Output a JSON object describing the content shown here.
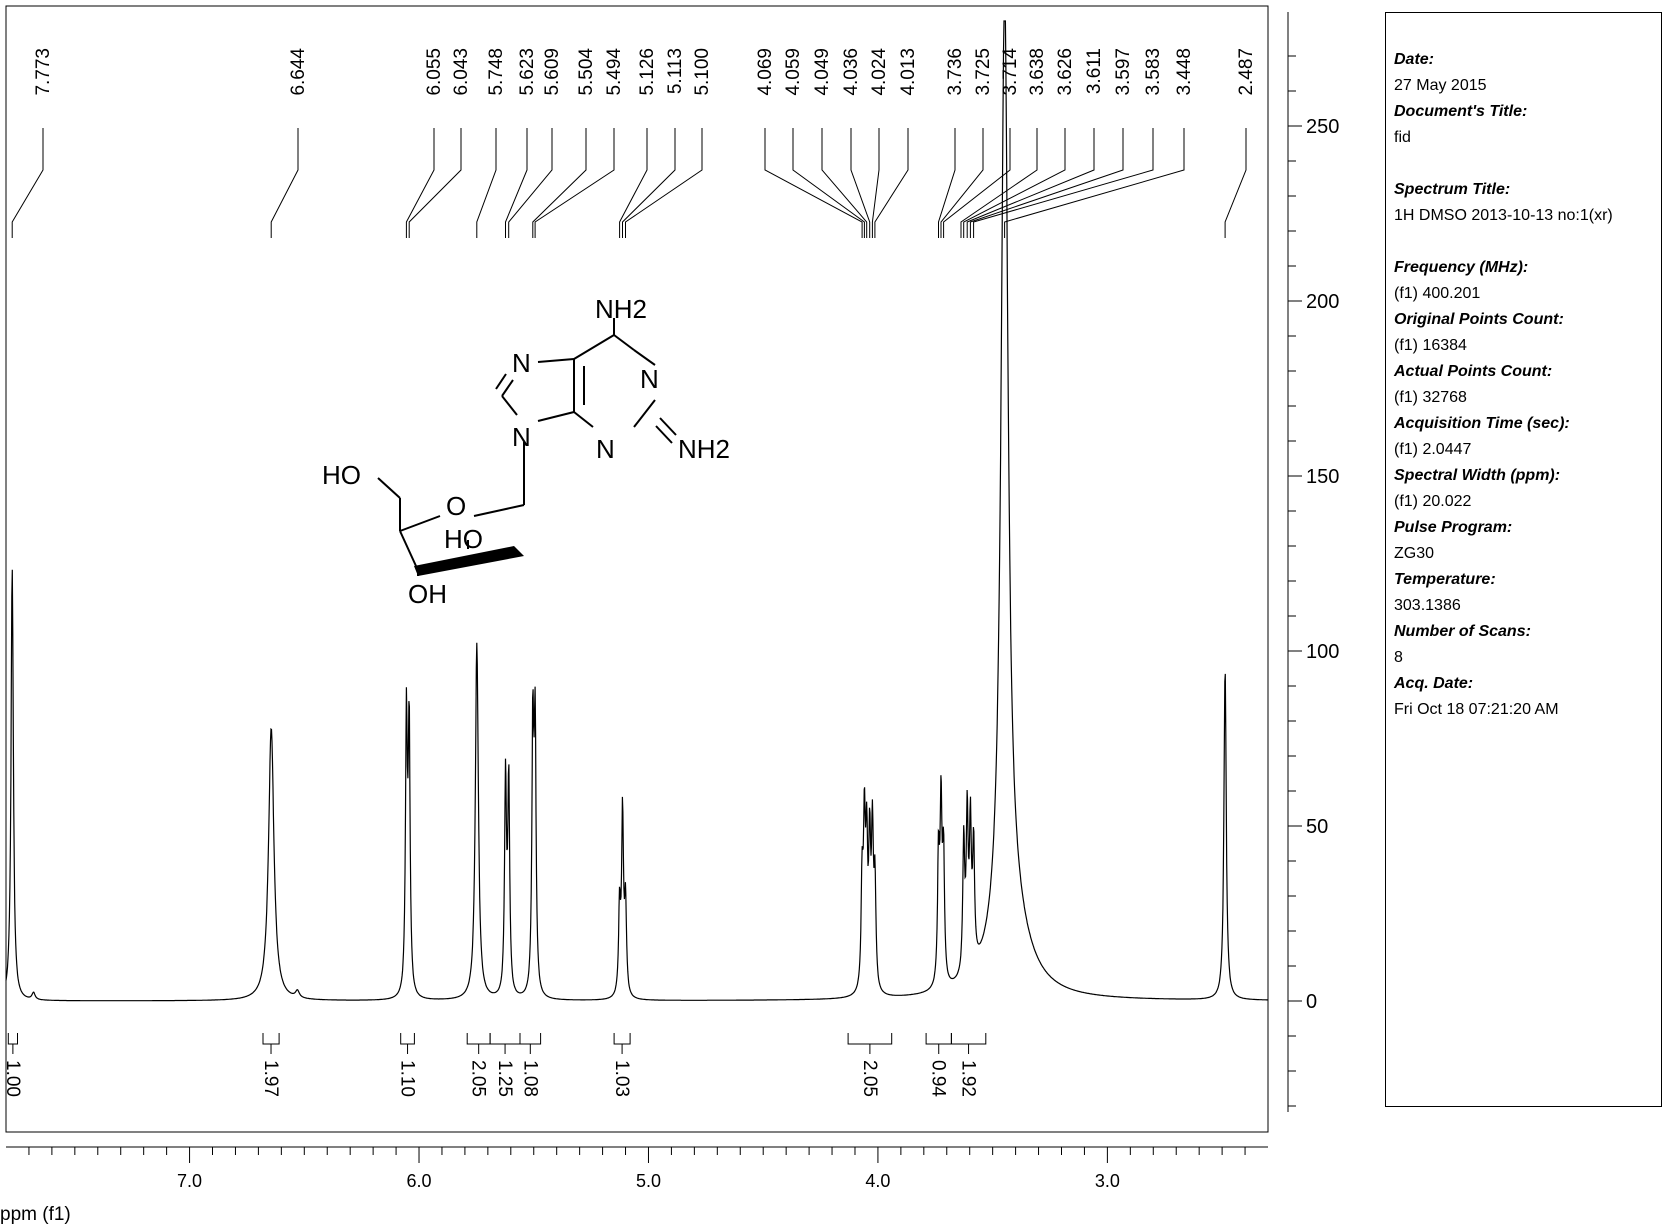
{
  "chart_data": {
    "type": "line",
    "title": "",
    "xlabel": "ppm (f1)",
    "ylabel": "",
    "xlim": [
      7.8,
      2.3
    ],
    "ylim": [
      -30,
      280
    ],
    "x_ticks": [
      7.0,
      6.0,
      5.0,
      4.0,
      3.0
    ],
    "x_tick_labels": [
      "7.0",
      "6.0",
      "5.0",
      "4.0",
      "3.0"
    ],
    "y_ticks": [
      0,
      50,
      100,
      150,
      200,
      250
    ],
    "y_tick_labels": [
      "0",
      "50",
      "100",
      "150",
      "200",
      "250"
    ],
    "grid": false,
    "baseline": 0,
    "series": [
      {
        "peaks": [
          {
            "ppm": 7.773,
            "height": 124,
            "width": 0.006
          },
          {
            "ppm": 7.68,
            "height": 2,
            "width": 0.008
          },
          {
            "ppm": 6.644,
            "height": 78,
            "width": 0.014
          },
          {
            "ppm": 6.53,
            "height": 2,
            "width": 0.01
          },
          {
            "ppm": 6.055,
            "height": 78,
            "width": 0.005
          },
          {
            "ppm": 6.043,
            "height": 76,
            "width": 0.005
          },
          {
            "ppm": 5.748,
            "height": 102,
            "width": 0.008
          },
          {
            "ppm": 5.623,
            "height": 62,
            "width": 0.005
          },
          {
            "ppm": 5.609,
            "height": 61,
            "width": 0.005
          },
          {
            "ppm": 5.504,
            "height": 75,
            "width": 0.005
          },
          {
            "ppm": 5.494,
            "height": 74,
            "width": 0.005
          },
          {
            "ppm": 5.126,
            "height": 25,
            "width": 0.005
          },
          {
            "ppm": 5.113,
            "height": 52,
            "width": 0.005
          },
          {
            "ppm": 5.1,
            "height": 26,
            "width": 0.005
          },
          {
            "ppm": 4.069,
            "height": 30,
            "width": 0.005
          },
          {
            "ppm": 4.059,
            "height": 45,
            "width": 0.005
          },
          {
            "ppm": 4.049,
            "height": 38,
            "width": 0.005
          },
          {
            "ppm": 4.036,
            "height": 40,
            "width": 0.005
          },
          {
            "ppm": 4.024,
            "height": 43,
            "width": 0.005
          },
          {
            "ppm": 4.013,
            "height": 30,
            "width": 0.005
          },
          {
            "ppm": 3.736,
            "height": 36,
            "width": 0.005
          },
          {
            "ppm": 3.725,
            "height": 50,
            "width": 0.005
          },
          {
            "ppm": 3.714,
            "height": 36,
            "width": 0.005
          },
          {
            "ppm": 3.626,
            "height": 38,
            "width": 0.005
          },
          {
            "ppm": 3.611,
            "height": 44,
            "width": 0.005
          },
          {
            "ppm": 3.597,
            "height": 40,
            "width": 0.005
          },
          {
            "ppm": 3.583,
            "height": 34,
            "width": 0.005
          },
          {
            "ppm": 3.448,
            "height": 270,
            "width": 0.018
          },
          {
            "ppm": 3.42,
            "height": 22,
            "width": 0.09
          },
          {
            "ppm": 2.487,
            "height": 95,
            "width": 0.006
          }
        ]
      }
    ],
    "peak_labels": [
      {
        "label": "7.773",
        "ppm": 7.773
      },
      {
        "label": "6.644",
        "ppm": 6.644
      },
      {
        "label": "6.055",
        "ppm": 6.055
      },
      {
        "label": "6.043",
        "ppm": 6.043
      },
      {
        "label": "5.748",
        "ppm": 5.748
      },
      {
        "label": "5.623",
        "ppm": 5.623
      },
      {
        "label": "5.609",
        "ppm": 5.609
      },
      {
        "label": "5.504",
        "ppm": 5.504
      },
      {
        "label": "5.494",
        "ppm": 5.494
      },
      {
        "label": "5.126",
        "ppm": 5.126
      },
      {
        "label": "5.113",
        "ppm": 5.113
      },
      {
        "label": "5.100",
        "ppm": 5.1
      },
      {
        "label": "4.069",
        "ppm": 4.069
      },
      {
        "label": "4.059",
        "ppm": 4.059
      },
      {
        "label": "4.049",
        "ppm": 4.049
      },
      {
        "label": "4.036",
        "ppm": 4.036
      },
      {
        "label": "4.024",
        "ppm": 4.024
      },
      {
        "label": "4.013",
        "ppm": 4.013
      },
      {
        "label": "3.736",
        "ppm": 3.736
      },
      {
        "label": "3.725",
        "ppm": 3.725
      },
      {
        "label": "3.714",
        "ppm": 3.714
      },
      {
        "label": "3.638",
        "ppm": 3.638
      },
      {
        "label": "3.626",
        "ppm": 3.626
      },
      {
        "label": "3.611",
        "ppm": 3.611
      },
      {
        "label": "3.597",
        "ppm": 3.597
      },
      {
        "label": "3.583",
        "ppm": 3.583
      },
      {
        "label": "3.448",
        "ppm": 3.448
      },
      {
        "label": "2.487",
        "ppm": 2.487
      }
    ],
    "integrals": [
      {
        "value": "1.00",
        "from": 7.79,
        "to": 7.75
      },
      {
        "value": "1.97",
        "from": 6.68,
        "to": 6.61
      },
      {
        "value": "1.10",
        "from": 6.08,
        "to": 6.02
      },
      {
        "value": "2.05",
        "from": 5.79,
        "to": 5.69
      },
      {
        "value": "1.25",
        "from": 5.69,
        "to": 5.56
      },
      {
        "value": "1.08",
        "from": 5.56,
        "to": 5.47
      },
      {
        "value": "1.03",
        "from": 5.15,
        "to": 5.08
      },
      {
        "value": "2.05",
        "from": 4.13,
        "to": 3.94
      },
      {
        "value": "0.94",
        "from": 3.79,
        "to": 3.68
      },
      {
        "value": "1.92",
        "from": 3.68,
        "to": 3.53
      }
    ]
  },
  "structure": {
    "atoms": [
      "NH2",
      "N",
      "N",
      "N",
      "N",
      "NH2",
      "HO",
      "O",
      "HO",
      "OH"
    ]
  },
  "info": {
    "date_label": "Date:",
    "date_value": "27 May 2015",
    "doc_title_label": "Document's Title:",
    "doc_title_value": "fid",
    "spectrum_title_label": "Spectrum Title:",
    "spectrum_title_value": "1H  DMSO   2013-10-13  no:1(xr)",
    "frequency_label": "Frequency (MHz):",
    "frequency_value": "(f1) 400.201",
    "original_points_label": "Original Points Count:",
    "original_points_value": "(f1) 16384",
    "actual_points_label": "Actual Points Count:",
    "actual_points_value": "(f1) 32768",
    "acq_time_label": "Acquisition Time (sec):",
    "acq_time_value": "(f1) 2.0447",
    "spectral_width_label": "Spectral Width (ppm):",
    "spectral_width_value": "(f1) 20.022",
    "pulse_program_label": "Pulse Program:",
    "pulse_program_value": "ZG30",
    "temperature_label": "Temperature:",
    "temperature_value": "303.1386",
    "scans_label": "Number of Scans:",
    "scans_value": "8",
    "acq_date_label": "Acq. Date:",
    "acq_date_value": "Fri Oct 18 07:21:20 AM"
  }
}
